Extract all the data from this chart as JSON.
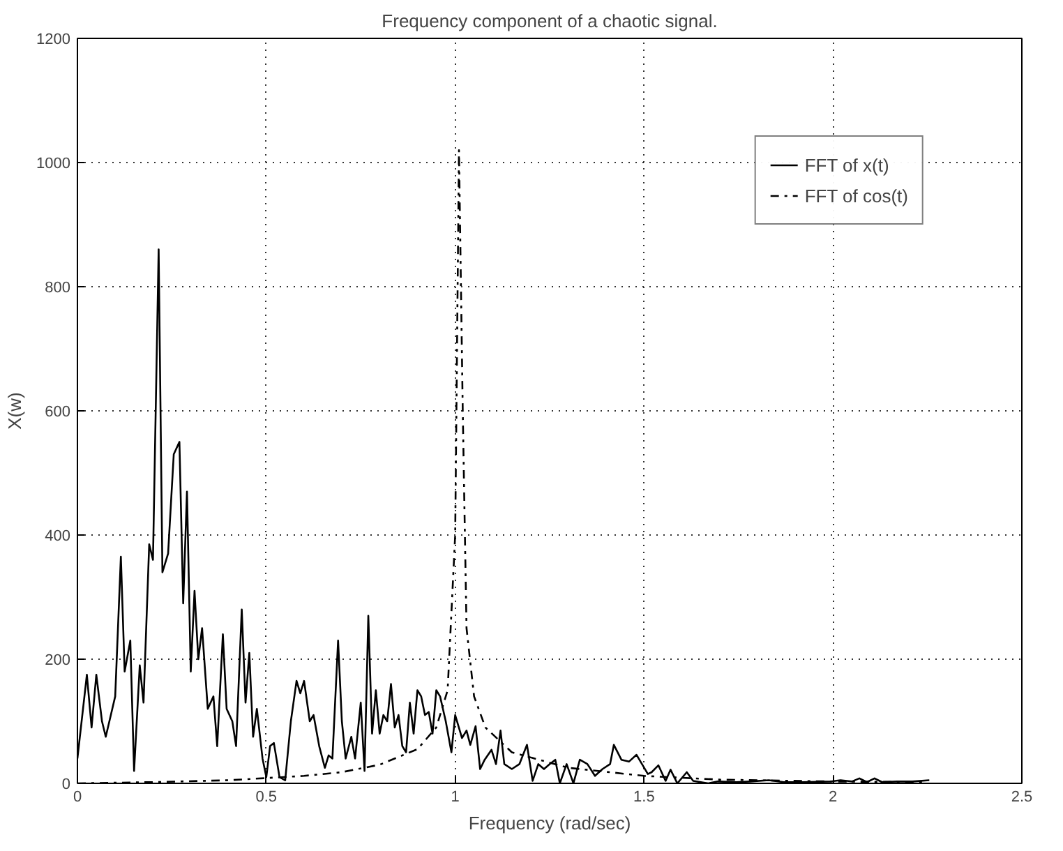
{
  "chart_data": {
    "type": "line",
    "title": "Frequency component of a chaotic signal.",
    "xlabel": "Frequency (rad/sec)",
    "ylabel": "X(w)",
    "xlim": [
      0,
      2.5
    ],
    "ylim": [
      0,
      1200
    ],
    "xticks": [
      0,
      0.5,
      1,
      1.5,
      2,
      2.5
    ],
    "yticks": [
      0,
      200,
      400,
      600,
      800,
      1000,
      1200
    ],
    "grid": true,
    "legend": "top right",
    "series": [
      {
        "name": "FFT of x(t)",
        "color": "#000000",
        "line_style": "solid",
        "x": [
          0,
          0.025,
          0.0375,
          0.05,
          0.065,
          0.075,
          0.1,
          0.115,
          0.125,
          0.14,
          0.15,
          0.165,
          0.175,
          0.19,
          0.2,
          0.215,
          0.225,
          0.24,
          0.255,
          0.27,
          0.28,
          0.29,
          0.3,
          0.31,
          0.32,
          0.33,
          0.345,
          0.36,
          0.37,
          0.385,
          0.395,
          0.41,
          0.42,
          0.435,
          0.445,
          0.455,
          0.465,
          0.475,
          0.49,
          0.5,
          0.51,
          0.52,
          0.535,
          0.55,
          0.565,
          0.58,
          0.59,
          0.6,
          0.615,
          0.625,
          0.64,
          0.655,
          0.665,
          0.675,
          0.69,
          0.7,
          0.71,
          0.725,
          0.735,
          0.75,
          0.76,
          0.77,
          0.78,
          0.79,
          0.8,
          0.81,
          0.82,
          0.83,
          0.84,
          0.85,
          0.86,
          0.87,
          0.88,
          0.89,
          0.9,
          0.91,
          0.92,
          0.93,
          0.94,
          0.95,
          0.96,
          0.975,
          0.99,
          1.0,
          1.018,
          1.03,
          1.04,
          1.054,
          1.066,
          1.078,
          1.096,
          1.108,
          1.12,
          1.13,
          1.15,
          1.17,
          1.19,
          1.205,
          1.22,
          1.235,
          1.25,
          1.265,
          1.277,
          1.295,
          1.313,
          1.33,
          1.35,
          1.37,
          1.39,
          1.41,
          1.42,
          1.44,
          1.46,
          1.48,
          1.51,
          1.52,
          1.538,
          1.557,
          1.57,
          1.588,
          1.613,
          1.63,
          1.67,
          1.695,
          1.745,
          1.78,
          1.83,
          1.87,
          1.92,
          1.995,
          2.02,
          2.05,
          2.07,
          2.09,
          2.11,
          2.13,
          2.17,
          2.21,
          2.255
        ],
        "values": [
          40,
          175,
          90,
          175,
          100,
          75,
          140,
          365,
          180,
          230,
          20,
          190,
          130,
          385,
          360,
          860,
          340,
          370,
          530,
          550,
          290,
          470,
          180,
          310,
          200,
          250,
          120,
          140,
          60,
          240,
          120,
          100,
          60,
          280,
          130,
          210,
          75,
          120,
          40,
          10,
          60,
          65,
          10,
          5,
          100,
          165,
          145,
          165,
          100,
          110,
          60,
          25,
          45,
          40,
          230,
          100,
          40,
          75,
          40,
          130,
          20,
          270,
          80,
          150,
          80,
          110,
          100,
          160,
          90,
          110,
          60,
          50,
          130,
          80,
          150,
          140,
          110,
          115,
          80,
          150,
          140,
          100,
          50,
          110,
          73,
          85,
          62,
          92,
          23,
          38,
          54,
          31,
          85,
          31,
          23,
          31,
          62,
          4,
          31,
          23,
          31,
          38,
          0,
          31,
          0,
          38,
          31,
          12,
          23,
          31,
          62,
          38,
          35,
          46,
          15,
          18,
          29,
          4,
          22,
          0,
          18,
          4,
          0,
          3,
          2,
          3,
          5,
          2,
          2,
          3,
          5,
          3,
          8,
          2,
          8,
          2,
          3,
          3,
          5
        ]
      },
      {
        "name": "FFT of cos(t)",
        "color": "#000000",
        "line_style": "dashdot",
        "x": [
          0,
          0.2,
          0.4,
          0.6,
          0.7,
          0.8,
          0.9,
          0.95,
          0.98,
          1.0,
          1.01,
          1.02,
          1.03,
          1.05,
          1.08,
          1.15,
          1.3,
          1.5,
          1.7,
          2.0,
          2.25
        ],
        "values": [
          0,
          2,
          5,
          12,
          18,
          30,
          55,
          90,
          150,
          400,
          1020,
          600,
          250,
          140,
          90,
          50,
          25,
          12,
          6,
          3,
          2
        ]
      }
    ]
  }
}
